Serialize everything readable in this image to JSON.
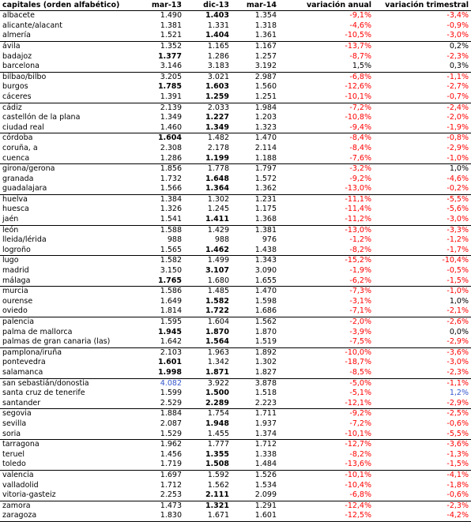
{
  "headers": [
    "capitales (orden alfabético)",
    "mar-13",
    "dic-13",
    "mar-14",
    "variación anual",
    "variación trimestral"
  ],
  "colors": {
    "negative": "#ff0000",
    "positive": "#000000",
    "highlight": "#3355cc"
  },
  "rows": [
    {
      "city": "albacete",
      "m13": "1.490",
      "d13": "1.403",
      "m14": "1.354",
      "va": "-9,1%",
      "vt": "-3,4%",
      "bold": [
        2
      ],
      "group": true
    },
    {
      "city": "alicante/alacant",
      "m13": "1.381",
      "d13": "1.331",
      "m14": "1.318",
      "va": "-4,6%",
      "vt": "-0,9%",
      "bold": []
    },
    {
      "city": "almería",
      "m13": "1.521",
      "d13": "1.404",
      "m14": "1.361",
      "va": "-10,5%",
      "vt": "-3,0%",
      "bold": [
        2
      ]
    },
    {
      "city": "ávila",
      "m13": "1.352",
      "d13": "1.165",
      "m14": "1.167",
      "va": "-13,7%",
      "vt": "0,2%",
      "bold": [],
      "group": true
    },
    {
      "city": "badajoz",
      "m13": "1.377",
      "d13": "1.286",
      "m14": "1.257",
      "va": "-8,7%",
      "vt": "-2,3%",
      "bold": [
        1
      ]
    },
    {
      "city": "barcelona",
      "m13": "3.146",
      "d13": "3.183",
      "m14": "3.192",
      "va": "1,5%",
      "vt": "0,3%",
      "bold": []
    },
    {
      "city": "bilbao/bilbo",
      "m13": "3.205",
      "d13": "3.021",
      "m14": "2.987",
      "va": "-6,8%",
      "vt": "-1,1%",
      "bold": [],
      "group": true
    },
    {
      "city": "burgos",
      "m13": "1.785",
      "d13": "1.603",
      "m14": "1.560",
      "va": "-12,6%",
      "vt": "-2,7%",
      "bold": [
        1,
        2
      ]
    },
    {
      "city": "cáceres",
      "m13": "1.391",
      "d13": "1.259",
      "m14": "1.251",
      "va": "-10,1%",
      "vt": "-0,7%",
      "bold": [
        2
      ]
    },
    {
      "city": "cádiz",
      "m13": "2.139",
      "d13": "2.033",
      "m14": "1.984",
      "va": "-7,2%",
      "vt": "-2,4%",
      "bold": [],
      "group": true
    },
    {
      "city": "castellón de la plana",
      "m13": "1.349",
      "d13": "1.227",
      "m14": "1.203",
      "va": "-10,8%",
      "vt": "-2,0%",
      "bold": [
        2
      ]
    },
    {
      "city": "ciudad real",
      "m13": "1.460",
      "d13": "1.349",
      "m14": "1.323",
      "va": "-9,4%",
      "vt": "-1,9%",
      "bold": [
        2
      ]
    },
    {
      "city": "córdoba",
      "m13": "1.604",
      "d13": "1.482",
      "m14": "1.470",
      "va": "-8,4%",
      "vt": "-0,8%",
      "bold": [
        1
      ],
      "group": true
    },
    {
      "city": "coruña, a",
      "m13": "2.308",
      "d13": "2.178",
      "m14": "2.114",
      "va": "-8,4%",
      "vt": "-2,9%",
      "bold": []
    },
    {
      "city": "cuenca",
      "m13": "1.286",
      "d13": "1.199",
      "m14": "1.188",
      "va": "-7,6%",
      "vt": "-1,0%",
      "bold": [
        2
      ]
    },
    {
      "city": "girona/gerona",
      "m13": "1.856",
      "d13": "1.778",
      "m14": "1.797",
      "va": "-3,2%",
      "vt": "1,0%",
      "bold": [],
      "group": true
    },
    {
      "city": "granada",
      "m13": "1.732",
      "d13": "1.648",
      "m14": "1.572",
      "va": "-9,2%",
      "vt": "-4,6%",
      "bold": [
        2
      ]
    },
    {
      "city": "guadalajara",
      "m13": "1.566",
      "d13": "1.364",
      "m14": "1.362",
      "va": "-13,0%",
      "vt": "-0,2%",
      "bold": [
        2
      ]
    },
    {
      "city": "huelva",
      "m13": "1.384",
      "d13": "1.302",
      "m14": "1.231",
      "va": "-11,1%",
      "vt": "-5,5%",
      "bold": [],
      "group": true
    },
    {
      "city": "huesca",
      "m13": "1.326",
      "d13": "1.245",
      "m14": "1.175",
      "va": "-11,4%",
      "vt": "-5,6%",
      "bold": []
    },
    {
      "city": "jaén",
      "m13": "1.541",
      "d13": "1.411",
      "m14": "1.368",
      "va": "-11,2%",
      "vt": "-3,0%",
      "bold": [
        2
      ]
    },
    {
      "city": "león",
      "m13": "1.588",
      "d13": "1.429",
      "m14": "1.381",
      "va": "-13,0%",
      "vt": "-3,3%",
      "bold": [],
      "group": true
    },
    {
      "city": "lleida/lérida",
      "m13": "988",
      "d13": "988",
      "m14": "976",
      "va": "-1,2%",
      "vt": "-1,2%",
      "bold": []
    },
    {
      "city": "logroño",
      "m13": "1.565",
      "d13": "1.462",
      "m14": "1.438",
      "va": "-8,2%",
      "vt": "-1,7%",
      "bold": [
        2
      ]
    },
    {
      "city": "lugo",
      "m13": "1.582",
      "d13": "1.499",
      "m14": "1.343",
      "va": "-15,2%",
      "vt": "-10,4%",
      "bold": [],
      "group": true
    },
    {
      "city": "madrid",
      "m13": "3.150",
      "d13": "3.107",
      "m14": "3.090",
      "va": "-1,9%",
      "vt": "-0,5%",
      "bold": [
        2
      ]
    },
    {
      "city": "málaga",
      "m13": "1.765",
      "d13": "1.680",
      "m14": "1.655",
      "va": "-6,2%",
      "vt": "-1,5%",
      "bold": [
        1
      ]
    },
    {
      "city": "murcia",
      "m13": "1.586",
      "d13": "1.485",
      "m14": "1.470",
      "va": "-7,3%",
      "vt": "-1,0%",
      "bold": [],
      "group": true
    },
    {
      "city": "ourense",
      "m13": "1.649",
      "d13": "1.582",
      "m14": "1.598",
      "va": "-3,1%",
      "vt": "1,0%",
      "bold": [
        2
      ]
    },
    {
      "city": "oviedo",
      "m13": "1.814",
      "d13": "1.722",
      "m14": "1.686",
      "va": "-7,1%",
      "vt": "-2,1%",
      "bold": [
        2
      ]
    },
    {
      "city": "palencia",
      "m13": "1.595",
      "d13": "1.604",
      "m14": "1.562",
      "va": "-2,0%",
      "vt": "-2,6%",
      "bold": [],
      "group": true
    },
    {
      "city": "palma de mallorca",
      "m13": "1.945",
      "d13": "1.870",
      "m14": "1.870",
      "va": "-3,9%",
      "vt": "0,0%",
      "bold": [
        1,
        2
      ]
    },
    {
      "city": "palmas de gran canaria (las)",
      "m13": "1.642",
      "d13": "1.564",
      "m14": "1.519",
      "va": "-7,5%",
      "vt": "-2,9%",
      "bold": [
        2
      ]
    },
    {
      "city": "pamplona/iruña",
      "m13": "2.103",
      "d13": "1.963",
      "m14": "1.892",
      "va": "-10,0%",
      "vt": "-3,6%",
      "bold": [],
      "group": true
    },
    {
      "city": "pontevedra",
      "m13": "1.601",
      "d13": "1.342",
      "m14": "1.302",
      "va": "-18,7%",
      "vt": "-3,0%",
      "bold": [
        1
      ]
    },
    {
      "city": "salamanca",
      "m13": "1.998",
      "d13": "1.871",
      "m14": "1.827",
      "va": "-8,5%",
      "vt": "-2,3%",
      "bold": [
        1,
        2
      ]
    },
    {
      "city": "san sebastián/donostia",
      "m13": "4.082",
      "d13": "3.922",
      "m14": "3.878",
      "va": "-5,0%",
      "vt": "-1,1%",
      "bold": [],
      "blue": [
        1
      ],
      "group": true
    },
    {
      "city": "santa cruz de tenerife",
      "m13": "1.599",
      "d13": "1.500",
      "m14": "1.518",
      "va": "-5,1%",
      "vt": "1,2%",
      "bold": [
        2
      ],
      "blue": [
        5
      ]
    },
    {
      "city": "santander",
      "m13": "2.529",
      "d13": "2.289",
      "m14": "2.223",
      "va": "-12,1%",
      "vt": "-2,9%",
      "bold": [
        2
      ]
    },
    {
      "city": "segovia",
      "m13": "1.884",
      "d13": "1.754",
      "m14": "1.711",
      "va": "-9,2%",
      "vt": "-2,5%",
      "bold": [],
      "group": true
    },
    {
      "city": "sevilla",
      "m13": "2.087",
      "d13": "1.948",
      "m14": "1.937",
      "va": "-7,2%",
      "vt": "-0,6%",
      "bold": [
        2
      ]
    },
    {
      "city": "soria",
      "m13": "1.529",
      "d13": "1.455",
      "m14": "1.374",
      "va": "-10,1%",
      "vt": "-5,5%",
      "bold": []
    },
    {
      "city": "tarragona",
      "m13": "1.962",
      "d13": "1.777",
      "m14": "1.712",
      "va": "-12,7%",
      "vt": "-3,6%",
      "bold": [],
      "group": true
    },
    {
      "city": "teruel",
      "m13": "1.456",
      "d13": "1.355",
      "m14": "1.338",
      "va": "-8,2%",
      "vt": "-1,3%",
      "bold": [
        2
      ]
    },
    {
      "city": "toledo",
      "m13": "1.719",
      "d13": "1.508",
      "m14": "1.484",
      "va": "-13,6%",
      "vt": "-1,5%",
      "bold": [
        2
      ]
    },
    {
      "city": "valencia",
      "m13": "1.697",
      "d13": "1.592",
      "m14": "1.526",
      "va": "-10,1%",
      "vt": "-4,1%",
      "bold": [],
      "group": true
    },
    {
      "city": "valladolid",
      "m13": "1.712",
      "d13": "1.562",
      "m14": "1.534",
      "va": "-10,4%",
      "vt": "-1,8%",
      "bold": []
    },
    {
      "city": "vitoria-gasteiz",
      "m13": "2.253",
      "d13": "2.111",
      "m14": "2.099",
      "va": "-6,8%",
      "vt": "-0,6%",
      "bold": [
        2
      ]
    },
    {
      "city": "zamora",
      "m13": "1.473",
      "d13": "1.321",
      "m14": "1.291",
      "va": "-12,4%",
      "vt": "-2,3%",
      "bold": [
        2
      ],
      "group": true
    },
    {
      "city": "zaragoza",
      "m13": "1.830",
      "d13": "1.671",
      "m14": "1.601",
      "va": "-12,5%",
      "vt": "-4,2%",
      "bold": [],
      "last": true
    }
  ]
}
